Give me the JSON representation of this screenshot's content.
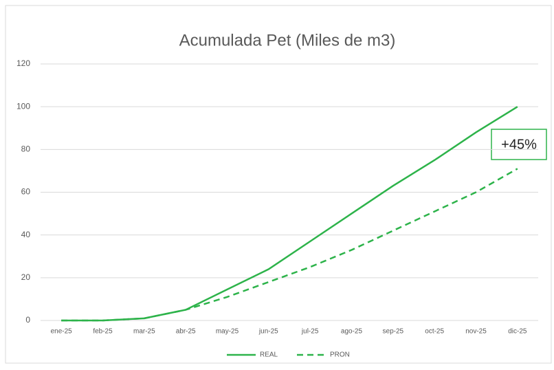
{
  "chart_data": {
    "type": "line",
    "title": "Acumulada Pet (Miles de m3)",
    "categories": [
      "ene-25",
      "feb-25",
      "mar-25",
      "abr-25",
      "may-25",
      "jun-25",
      "jul-25",
      "ago-25",
      "sep-25",
      "oct-25",
      "nov-25",
      "dic-25"
    ],
    "series": [
      {
        "name": "REAL",
        "color": "#2db34a",
        "dash": false,
        "values": [
          0,
          0,
          1,
          5,
          14.5,
          24,
          37,
          50,
          63,
          75,
          88,
          100
        ]
      },
      {
        "name": "PRON",
        "color": "#2db34a",
        "dash": true,
        "values": [
          0,
          0,
          1,
          5,
          11,
          18,
          25,
          33,
          42,
          51,
          60,
          71
        ]
      }
    ],
    "ylim": [
      0,
      120
    ],
    "yticks": [
      0,
      20,
      40,
      60,
      80,
      100,
      120
    ],
    "grid": true,
    "legend": "bottom",
    "annotation": "+45%"
  }
}
